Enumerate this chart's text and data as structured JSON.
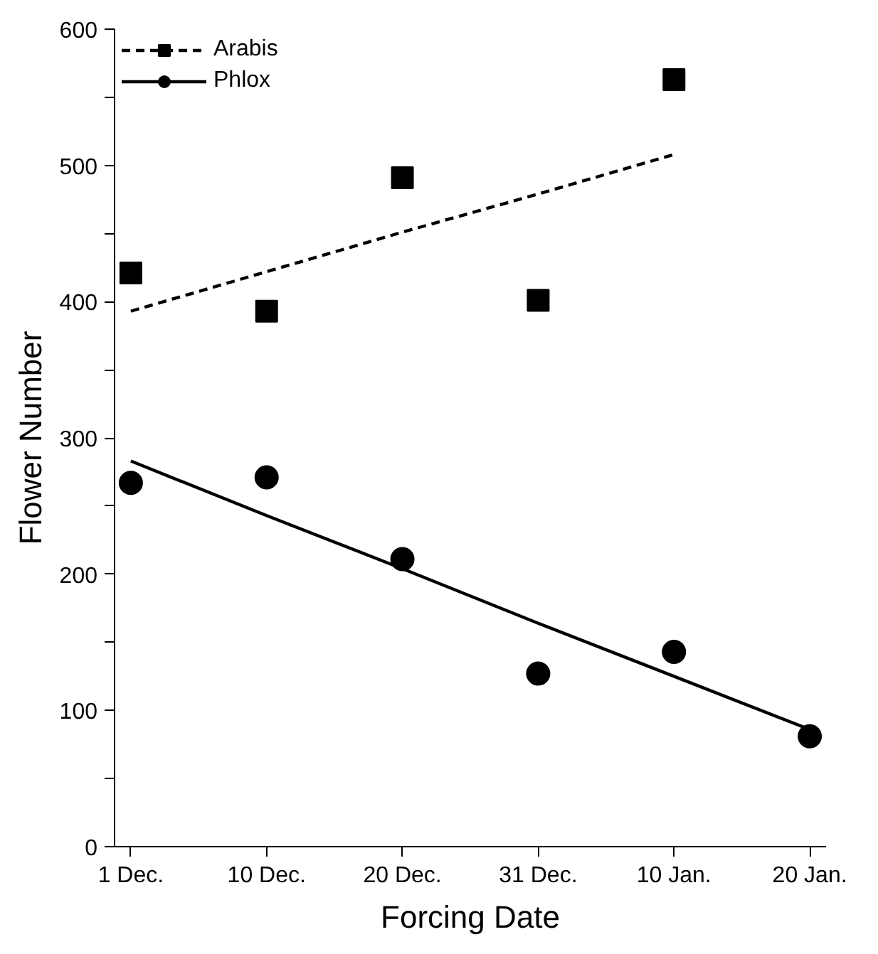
{
  "chart_data": {
    "type": "scatter",
    "xlabel": "Forcing Date",
    "ylabel": "Flower Number",
    "categories": [
      "1 Dec.",
      "10 Dec.",
      "20 Dec.",
      "31 Dec.",
      "10 Jan.",
      "20 Jan."
    ],
    "ylim": [
      0,
      600
    ],
    "yticks": [
      0,
      {
        "value": 50,
        "label": null
      },
      100,
      {
        "value": 150,
        "label": null
      },
      200,
      {
        "value": 250,
        "label": null
      },
      300,
      {
        "value": 350,
        "label": null
      },
      400,
      {
        "value": 450,
        "label": null
      },
      500,
      {
        "value": 550,
        "label": null
      },
      600
    ],
    "grid": false,
    "legend": "top left",
    "series": [
      {
        "type": "line",
        "line_style": "dashed",
        "marker": "none",
        "color": "#000000",
        "values": [
          393,
          422,
          451,
          479,
          508,
          null
        ]
      },
      {
        "name": "Arabis",
        "marker": "square",
        "color": "#000000",
        "values": [
          421,
          393,
          491,
          401,
          563,
          null
        ]
      },
      {
        "type": "line",
        "line_style": "solid",
        "marker": "none",
        "color": "#000000",
        "values": [
          283,
          243,
          204,
          164,
          125,
          86
        ]
      },
      {
        "name": "Phlox",
        "marker": "circle",
        "color": "#000000",
        "values": [
          267,
          271,
          211,
          127,
          143,
          81
        ]
      }
    ]
  }
}
